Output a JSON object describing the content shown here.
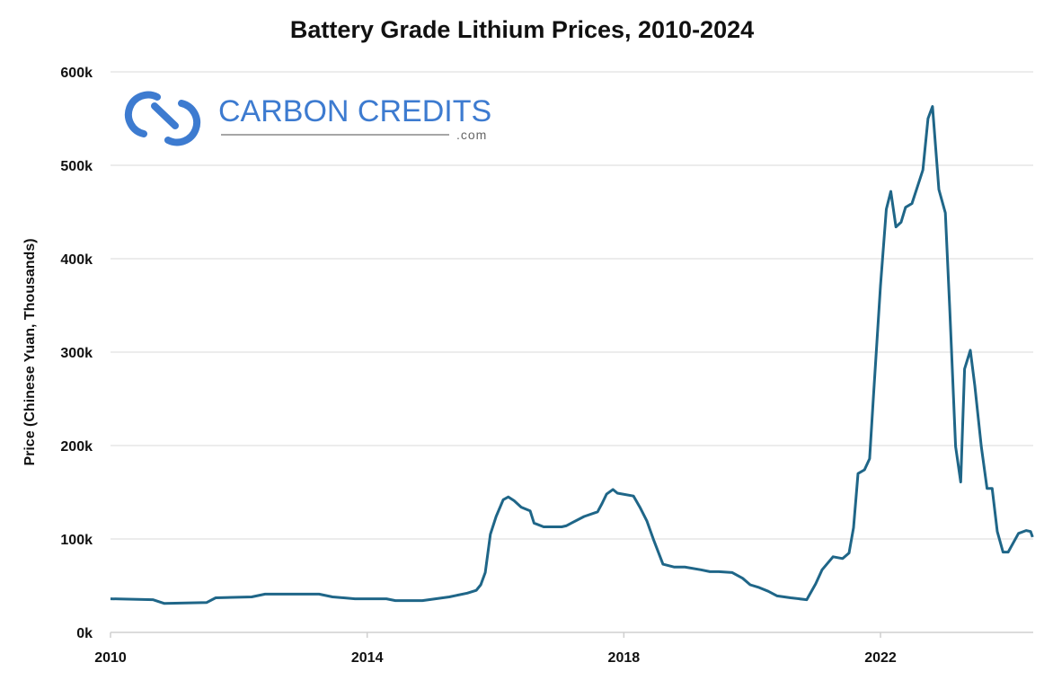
{
  "chart_data": {
    "type": "line",
    "title": "Battery Grade Lithium Prices, 2010-2024",
    "xlabel": "",
    "ylabel": "Price (Chinese Yuan, Thousands)",
    "xlim": [
      2010,
      2024.38
    ],
    "ylim": [
      0,
      600
    ],
    "x_ticks": [
      2010,
      2014,
      2018,
      2022
    ],
    "x_tick_labels": [
      "2010",
      "2014",
      "2018",
      "2022"
    ],
    "y_ticks": [
      0,
      100,
      200,
      300,
      400,
      500,
      600
    ],
    "y_tick_labels": [
      "0k",
      "100k",
      "200k",
      "300k",
      "400k",
      "500k",
      "600k"
    ],
    "grid": "horizontal",
    "line_color": "#1f6688",
    "series": [
      {
        "x": [
          2010.0,
          2010.66,
          2010.84,
          2011.5,
          2011.64,
          2012.2,
          2012.41,
          2013.25,
          2013.46,
          2013.81,
          2014.3,
          2014.44,
          2014.86,
          2015.28,
          2015.56,
          2015.7,
          2015.77,
          2015.84,
          2015.92,
          2016.01,
          2016.12,
          2016.2,
          2016.29,
          2016.4,
          2016.54,
          2016.6,
          2016.75,
          2017.03,
          2017.1,
          2017.38,
          2017.59,
          2017.66,
          2017.73,
          2017.83,
          2017.9,
          2018.15,
          2018.25,
          2018.36,
          2018.47,
          2018.61,
          2018.78,
          2018.95,
          2019.2,
          2019.34,
          2019.48,
          2019.69,
          2019.85,
          2019.97,
          2020.11,
          2020.25,
          2020.39,
          2020.6,
          2020.85,
          2020.99,
          2021.09,
          2021.26,
          2021.41,
          2021.51,
          2021.58,
          2021.65,
          2021.75,
          2021.83,
          2021.89,
          2022.0,
          2022.09,
          2022.16,
          2022.24,
          2022.32,
          2022.39,
          2022.49,
          2022.66,
          2022.74,
          2022.81,
          2022.91,
          2023.01,
          2023.08,
          2023.17,
          2023.25,
          2023.31,
          2023.4,
          2023.47,
          2023.57,
          2023.66,
          2023.74,
          2023.82,
          2023.91,
          2023.99,
          2024.15,
          2024.27,
          2024.34,
          2024.37
        ],
        "values": [
          36,
          35,
          31,
          32,
          37,
          38,
          41,
          41,
          38,
          36,
          36,
          34,
          34,
          38,
          42,
          45,
          51,
          64,
          105,
          124,
          142,
          145,
          141,
          134,
          130,
          117,
          113,
          113,
          114,
          124,
          129,
          138,
          148,
          153,
          149,
          146,
          134,
          119,
          98,
          73,
          70,
          70,
          67,
          65,
          65,
          64,
          58,
          51,
          48,
          44,
          39,
          37,
          35,
          52,
          67,
          81,
          79,
          85,
          112,
          170,
          174,
          186,
          253,
          371,
          453,
          472,
          434,
          439,
          455,
          459,
          495,
          550,
          563,
          474,
          449,
          344,
          199,
          161,
          282,
          302,
          264,
          199,
          154,
          154,
          108,
          86,
          86,
          106,
          109,
          108,
          102
        ]
      }
    ]
  },
  "logo": {
    "text": "CARBON CREDITS",
    "suffix": ".com",
    "color": "#3d7bd0"
  }
}
